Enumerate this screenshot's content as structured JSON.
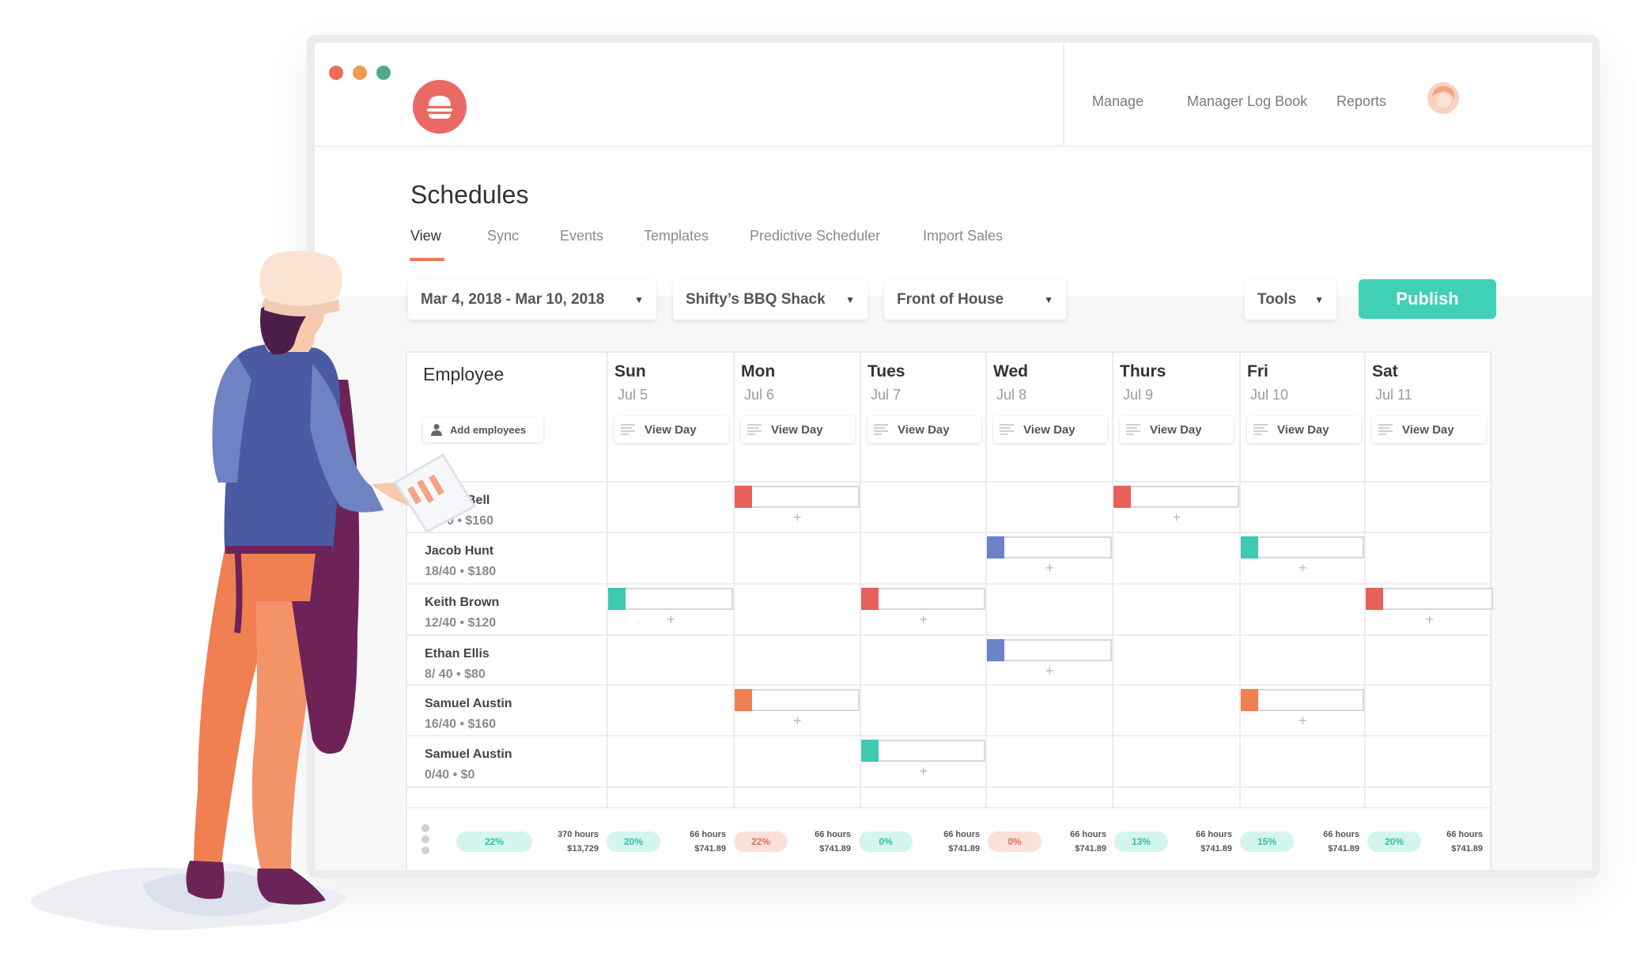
{
  "window": {
    "dot_colors": [
      "#ee6b5e",
      "#f19a52",
      "#4bab8f"
    ]
  },
  "topnav": {
    "items": [
      "Manage",
      "Manager Log Book",
      "Reports"
    ]
  },
  "page": {
    "title": "Schedules",
    "tabs": [
      "View",
      "Sync",
      "Events",
      "Templates",
      "Predictive Scheduler",
      "Import Sales"
    ],
    "active_tab": "View"
  },
  "filters": {
    "date_range": "Mar 4, 2018 - Mar 10, 2018",
    "location": "Shifty’s BBQ Shack",
    "department": "Front of House",
    "tools": "Tools",
    "publish": "Publish"
  },
  "grid": {
    "employee_header": "Employee",
    "add_employees": "Add employees",
    "view_day": "View Day",
    "days": [
      {
        "name": "Sun",
        "date": "Jul 5"
      },
      {
        "name": "Mon",
        "date": "Jul 6"
      },
      {
        "name": "Tues",
        "date": "Jul 7"
      },
      {
        "name": "Wed",
        "date": "Jul 8"
      },
      {
        "name": "Thurs",
        "date": "Jul 9"
      },
      {
        "name": "Fri",
        "date": "Jul 10"
      },
      {
        "name": "Sat",
        "date": "Jul 11"
      }
    ],
    "rows": [
      {
        "name": "Bell",
        "meta": "0 • $160",
        "shifts": [
          {
            "day": 1,
            "color": "#e8605a"
          },
          {
            "day": 4,
            "color": "#e8605a"
          }
        ]
      },
      {
        "name": "Jacob Hunt",
        "meta": "18/40 • $180",
        "shifts": [
          {
            "day": 3,
            "color": "#6c82c8"
          },
          {
            "day": 5,
            "color": "#3fc9b0"
          }
        ]
      },
      {
        "name": "Keith Brown",
        "meta": "12/40 • $120",
        "shifts": [
          {
            "day": 0,
            "color": "#3fc9b0"
          },
          {
            "day": 2,
            "color": "#e8605a"
          },
          {
            "day": 6,
            "color": "#e8605a"
          }
        ]
      },
      {
        "name": "Ethan Ellis",
        "meta": "8/ 40 • $80",
        "shifts": [
          {
            "day": 3,
            "color": "#6c82c8"
          }
        ]
      },
      {
        "name": "Samuel Austin",
        "meta": "16/40 • $160",
        "shifts": [
          {
            "day": 1,
            "color": "#f07f52"
          },
          {
            "day": 5,
            "color": "#f07f52"
          }
        ]
      },
      {
        "name": "Samuel Austin",
        "meta": "0/40 • $0",
        "shifts": [
          {
            "day": 2,
            "color": "#3fc9b0"
          }
        ]
      }
    ]
  },
  "footer": {
    "first_pill": "22%",
    "stats": [
      {
        "hours": "370 hours",
        "money": "$13,729",
        "pill": "20%",
        "tone": "green"
      },
      {
        "hours": "66 hours",
        "money": "$741.89",
        "pill": "22%",
        "tone": "red"
      },
      {
        "hours": "66 hours",
        "money": "$741.89",
        "pill": "0%",
        "tone": "green"
      },
      {
        "hours": "66 hours",
        "money": "$741.89",
        "pill": "0%",
        "tone": "red"
      },
      {
        "hours": "66 hours",
        "money": "$741.89",
        "pill": "13%",
        "tone": "green"
      },
      {
        "hours": "66 hours",
        "money": "$741.89",
        "pill": "15%",
        "tone": "green"
      },
      {
        "hours": "66 hours",
        "money": "$741.89",
        "pill": "20%",
        "tone": "green"
      },
      {
        "hours": "66 hours",
        "money": "$741.89",
        "pill": null,
        "tone": null
      }
    ]
  }
}
